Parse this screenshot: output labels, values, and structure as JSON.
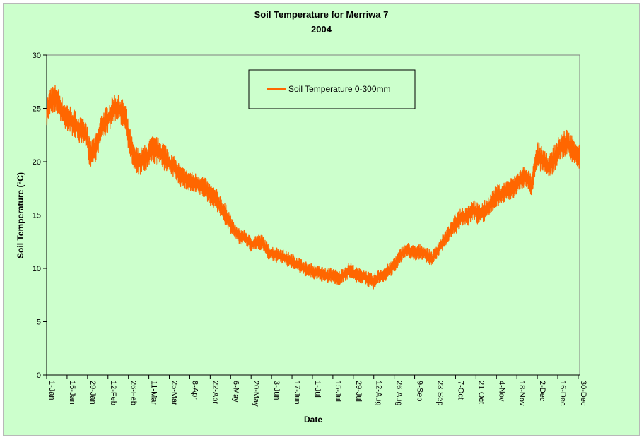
{
  "chart_data": {
    "type": "line",
    "title": "Soil Temperature for Merriwa 7",
    "subtitle": "2004",
    "xlabel": "Date",
    "ylabel": "Soil Temperature (°C)",
    "ylim": [
      0,
      30
    ],
    "yticks": [
      0,
      5,
      10,
      15,
      20,
      25,
      30
    ],
    "xlim": [
      "2004-01-01",
      "2004-12-31"
    ],
    "xticks": [
      "1-Jan",
      "15-Jan",
      "29-Jan",
      "12-Feb",
      "26-Feb",
      "11-Mar",
      "25-Mar",
      "8-Apr",
      "22-Apr",
      "6-May",
      "20-May",
      "3-Jun",
      "17-Jun",
      "1-Jul",
      "15-Jul",
      "29-Jul",
      "12-Aug",
      "26-Aug",
      "9-Sep",
      "23-Sep",
      "7-Oct",
      "21-Oct",
      "4-Nov",
      "18-Nov",
      "2-Dec",
      "16-Dec",
      "30-Dec"
    ],
    "grid": false,
    "legend_position": "top-center",
    "series": [
      {
        "name": "Soil Temperature  0-300mm",
        "color": "#ff6600",
        "x": [
          "2004-01-01",
          "2004-01-04",
          "2004-01-08",
          "2004-01-12",
          "2004-01-16",
          "2004-01-20",
          "2004-01-24",
          "2004-01-28",
          "2004-01-31",
          "2004-02-04",
          "2004-02-08",
          "2004-02-12",
          "2004-02-16",
          "2004-02-20",
          "2004-02-24",
          "2004-02-26",
          "2004-03-01",
          "2004-03-05",
          "2004-03-09",
          "2004-03-13",
          "2004-03-17",
          "2004-03-21",
          "2004-03-25",
          "2004-03-29",
          "2004-04-02",
          "2004-04-06",
          "2004-04-10",
          "2004-04-14",
          "2004-04-18",
          "2004-04-22",
          "2004-04-26",
          "2004-04-30",
          "2004-05-04",
          "2004-05-08",
          "2004-05-12",
          "2004-05-16",
          "2004-05-20",
          "2004-05-24",
          "2004-05-28",
          "2004-06-01",
          "2004-06-05",
          "2004-06-09",
          "2004-06-13",
          "2004-06-17",
          "2004-06-21",
          "2004-06-25",
          "2004-06-29",
          "2004-07-03",
          "2004-07-07",
          "2004-07-11",
          "2004-07-15",
          "2004-07-19",
          "2004-07-23",
          "2004-07-27",
          "2004-07-31",
          "2004-08-04",
          "2004-08-08",
          "2004-08-12",
          "2004-08-16",
          "2004-08-20",
          "2004-08-24",
          "2004-08-28",
          "2004-09-01",
          "2004-09-05",
          "2004-09-09",
          "2004-09-13",
          "2004-09-17",
          "2004-09-21",
          "2004-09-25",
          "2004-09-29",
          "2004-10-03",
          "2004-10-07",
          "2004-10-11",
          "2004-10-15",
          "2004-10-19",
          "2004-10-23",
          "2004-10-27",
          "2004-10-31",
          "2004-11-04",
          "2004-11-08",
          "2004-11-12",
          "2004-11-16",
          "2004-11-20",
          "2004-11-24",
          "2004-11-28",
          "2004-12-02",
          "2004-12-06",
          "2004-12-10",
          "2004-12-14",
          "2004-12-18",
          "2004-12-22",
          "2004-12-26",
          "2004-12-31"
        ],
        "y": [
          24.6,
          25.8,
          26.0,
          24.6,
          24.1,
          23.6,
          22.9,
          22.5,
          20.6,
          21.4,
          23.4,
          24.0,
          25.1,
          24.9,
          24.2,
          22.4,
          20.2,
          20.0,
          20.3,
          21.1,
          21.0,
          20.6,
          19.9,
          19.4,
          18.6,
          18.3,
          18.0,
          17.9,
          17.6,
          16.9,
          16.5,
          15.6,
          14.7,
          13.6,
          13.0,
          12.9,
          12.2,
          12.5,
          12.4,
          11.5,
          11.3,
          11.2,
          10.9,
          10.7,
          10.4,
          10.0,
          9.8,
          9.6,
          9.5,
          9.3,
          9.4,
          9.0,
          9.5,
          9.9,
          9.4,
          9.3,
          9.0,
          8.7,
          9.3,
          9.5,
          10.0,
          10.7,
          11.5,
          11.7,
          11.4,
          11.6,
          11.3,
          10.9,
          11.8,
          12.6,
          13.4,
          14.2,
          14.8,
          14.9,
          15.6,
          15.0,
          15.4,
          16.0,
          16.8,
          17.0,
          17.4,
          17.6,
          18.3,
          18.7,
          17.8,
          20.6,
          20.1,
          19.6,
          20.4,
          21.4,
          21.8,
          21.2,
          20.5
        ]
      }
    ]
  }
}
